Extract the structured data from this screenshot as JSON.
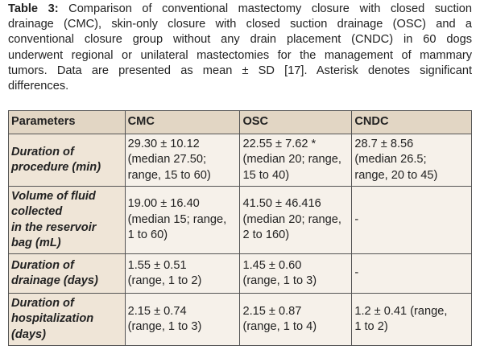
{
  "caption": {
    "label": "Table 3:",
    "lines": [
      "Comparison of conventional mastectomy closure with closed suction",
      "drainage (CMC), skin-only closure with closed suction drainage (OSC) and a",
      "conventional closure group without any drain placement (CNDC) in 60 dogs",
      "underwent regional or unilateral mastectomies for the management of mammary",
      "tumors. Data are presented as mean ± SD [17]. Asterisk denotes significant",
      "differences."
    ]
  },
  "table": {
    "header": [
      "Parameters",
      "CMC",
      "OSC",
      "CNDC"
    ],
    "rows": [
      [
        [
          "Duration of",
          "procedure (min)"
        ],
        [
          "29.30 ± 10.12",
          "(median 27.50;",
          "range, 15 to 60)"
        ],
        [
          "22.55 ± 7.62 *",
          "(median 20; range,",
          "15 to 40)"
        ],
        [
          "28.7 ± 8.56",
          "(median 26.5;",
          "range, 20 to 45)"
        ]
      ],
      [
        [
          "Volume of fluid",
          "collected",
          "in the reservoir",
          "bag (mL)"
        ],
        [
          "19.00 ± 16.40",
          "(median 15; range,",
          "1 to 60)"
        ],
        [
          "41.50 ± 46.416",
          "(median 20; range,",
          "2 to 160)"
        ],
        [
          "-"
        ]
      ],
      [
        [
          "Duration of",
          "drainage (days)"
        ],
        [
          "1.55 ± 0.51",
          "(range, 1 to 2)"
        ],
        [
          "1.45 ± 0.60",
          "(range, 1 to 3)"
        ],
        [
          "-"
        ]
      ],
      [
        [
          "Duration of",
          "hospitalization",
          "(days)"
        ],
        [
          "2.15 ± 0.74",
          "(range, 1 to 3)"
        ],
        [
          "2.15 ± 0.87",
          "(range, 1 to 4)"
        ],
        [
          "1.2 ± 0.41 (range,",
          "1 to 2)"
        ]
      ]
    ]
  }
}
